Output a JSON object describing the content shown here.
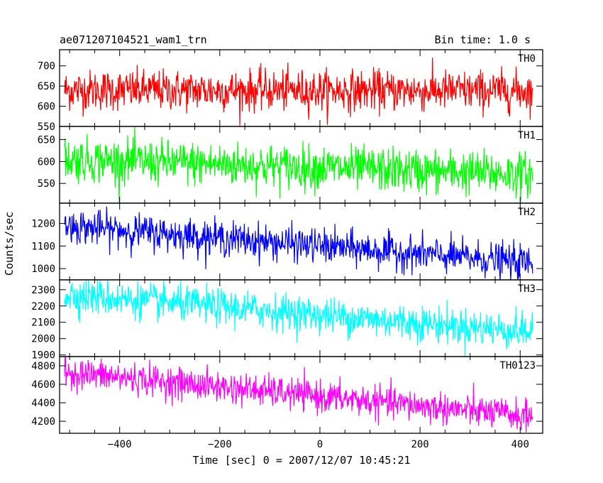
{
  "chart_data": {
    "type": "line",
    "title": "ae071207104521_wam1_trn",
    "subtitle": "Bin time: 1.0 s",
    "xlabel": "Time [sec] 0 = 2007/12/07 10:45:21",
    "ylabel": "Counts/sec",
    "xlim": [
      -520,
      445
    ],
    "x_ticks": [
      -400,
      -200,
      0,
      200,
      400
    ],
    "x_range_data": [
      -510,
      425
    ],
    "x_step": 1.0,
    "grid": false,
    "panels": [
      {
        "name": "TH0",
        "color": "#ff0000",
        "ylim": [
          550,
          740
        ],
        "y_ticks": [
          550,
          600,
          650,
          700
        ],
        "trend_start": 640,
        "trend_end": 638,
        "noise_sd": 25
      },
      {
        "name": "TH1",
        "color": "#00ff00",
        "ylim": [
          505,
          680
        ],
        "y_ticks": [
          550,
          600,
          650
        ],
        "trend_start": 605,
        "trend_end": 570,
        "noise_sd": 25
      },
      {
        "name": "TH2",
        "color": "#0000ff",
        "ylim": [
          950,
          1290
        ],
        "y_ticks": [
          1000,
          1100,
          1200
        ],
        "trend_start": 1190,
        "trend_end": 1025,
        "noise_sd": 38
      },
      {
        "name": "TH3",
        "color": "#00ffff",
        "ylim": [
          1890,
          2360
        ],
        "y_ticks": [
          1900,
          2000,
          2100,
          2200,
          2300
        ],
        "trend_start": 2270,
        "trend_end": 2040,
        "noise_sd": 55
      },
      {
        "name": "TH0123",
        "color": "#ff00ff",
        "ylim": [
          4070,
          4900
        ],
        "y_ticks": [
          4200,
          4400,
          4600,
          4800
        ],
        "trend_start": 4730,
        "trend_end": 4250,
        "noise_sd": 85
      }
    ]
  }
}
